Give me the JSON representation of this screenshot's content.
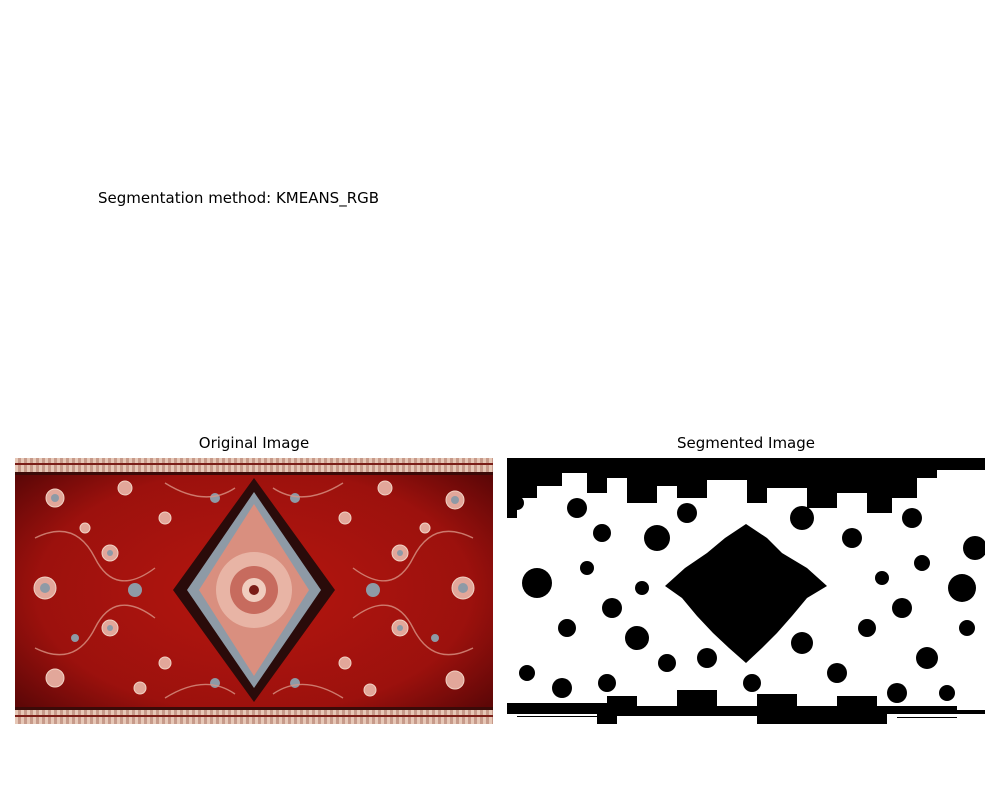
{
  "figure": {
    "method_text": "Segmentation method: KMEANS_RGB"
  },
  "panels": [
    {
      "title": "Original Image",
      "content": "photo of a red Persian rug with floral pattern and central medallion"
    },
    {
      "title": "Segmented Image",
      "content": "binary black-and-white segmentation mask"
    }
  ],
  "colors": {
    "rug_red": "#a8120f",
    "rug_dark_red": "#5e0707",
    "rug_pink": "#e2a79a",
    "rug_blue_grey": "#8e9aa6",
    "rug_border_cream": "#d9b7a4",
    "mask_black": "#000000",
    "mask_white": "#ffffff"
  }
}
